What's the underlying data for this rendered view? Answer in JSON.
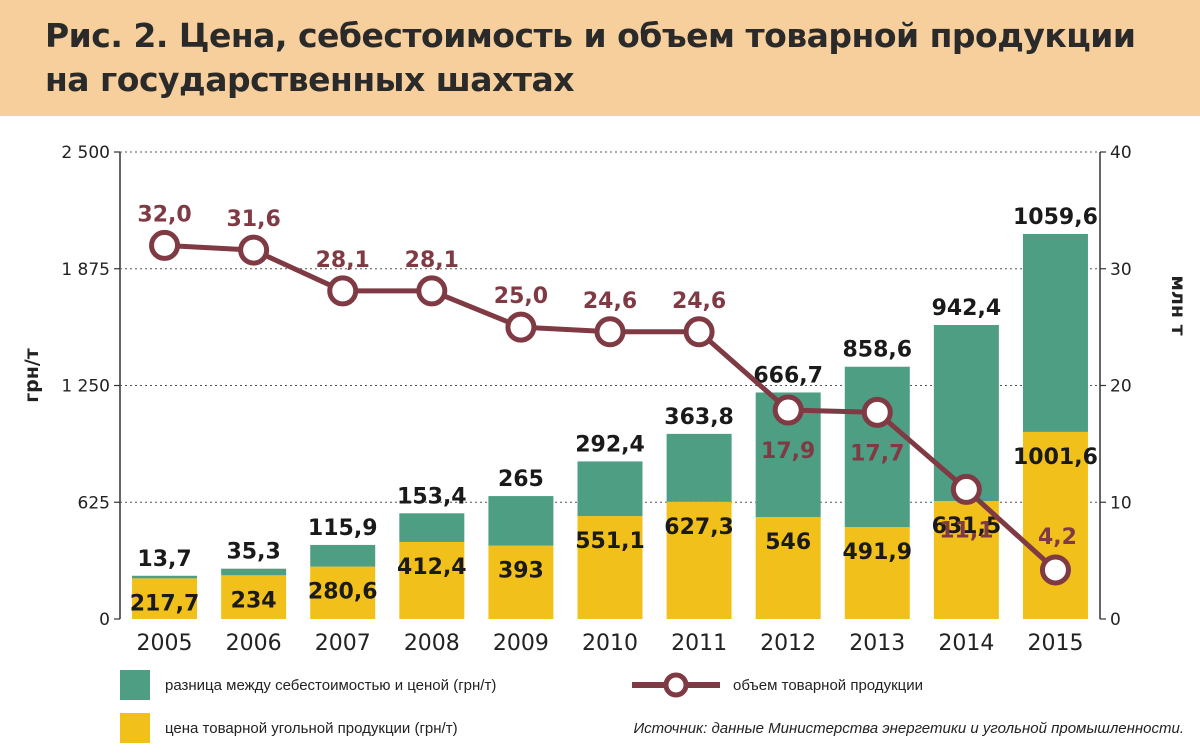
{
  "title": "Рис. 2. Цена, себестоимость и объем товарной продукции на государственных шахтах",
  "source": "Источник: данные Министерства энергетики и угольной промышленности.",
  "colors": {
    "price": "#f2c01b",
    "diff": "#4e9e84",
    "line": "#7f3a44",
    "price_label": "#1a1a1a",
    "line_label": "#7f3a44",
    "title_band": "#f6cf9c"
  },
  "legend": {
    "diff_label": "разница между себестоимостью и ценой (грн/т)",
    "price_label": "цена товарной угольной продукции (грн/т)",
    "line_label": "объем товарной продукции"
  },
  "chart_data": {
    "type": "bar",
    "stacked": true,
    "categories": [
      "2005",
      "2006",
      "2007",
      "2008",
      "2009",
      "2010",
      "2011",
      "2012",
      "2013",
      "2014",
      "2015"
    ],
    "series": [
      {
        "name": "цена товарной угольной продукции (грн/т)",
        "values": [
          217.7,
          234,
          280.6,
          412.4,
          393,
          551.1,
          627.3,
          546,
          491.9,
          631.5,
          1001.6
        ],
        "labels": [
          "217,7",
          "234",
          "280,6",
          "412,4",
          "393",
          "551,1",
          "627,3",
          "546",
          "491,9",
          "631,5",
          "1001,6"
        ]
      },
      {
        "name": "разница между себестоимостью и ценой (грн/т)",
        "values": [
          13.7,
          35.3,
          115.9,
          153.4,
          265,
          292.4,
          363.8,
          666.7,
          858.6,
          942.4,
          1059.6
        ],
        "labels": [
          "13,7",
          "35,3",
          "115,9",
          "153,4",
          "265",
          "292,4",
          "363,8",
          "666,7",
          "858,6",
          "942,4",
          "1059,6"
        ]
      }
    ],
    "line_series": {
      "name": "объем товарной продукции",
      "axis": "right",
      "values": [
        32.0,
        31.6,
        28.1,
        28.1,
        25.0,
        24.6,
        24.6,
        17.9,
        17.7,
        11.1,
        4.2
      ],
      "labels": [
        "32,0",
        "31,6",
        "28,1",
        "28,1",
        "25,0",
        "24,6",
        "24,6",
        "17,9",
        "17,7",
        "11,1",
        "4,2"
      ]
    },
    "ylabel": "грн/т",
    "y2label": "млн т",
    "ylim": [
      0,
      2500
    ],
    "y2lim": [
      0,
      40
    ],
    "yticks": [
      0,
      625,
      1250,
      1875,
      2500
    ],
    "ytick_labels": [
      "0",
      "625",
      "1 250",
      "1 875",
      "2 500"
    ],
    "y2ticks": [
      0,
      10,
      20,
      30,
      40
    ],
    "y2tick_labels": [
      "0",
      "10",
      "20",
      "30",
      "40"
    ],
    "grid": "horizontal dotted",
    "legend_position": "bottom"
  }
}
